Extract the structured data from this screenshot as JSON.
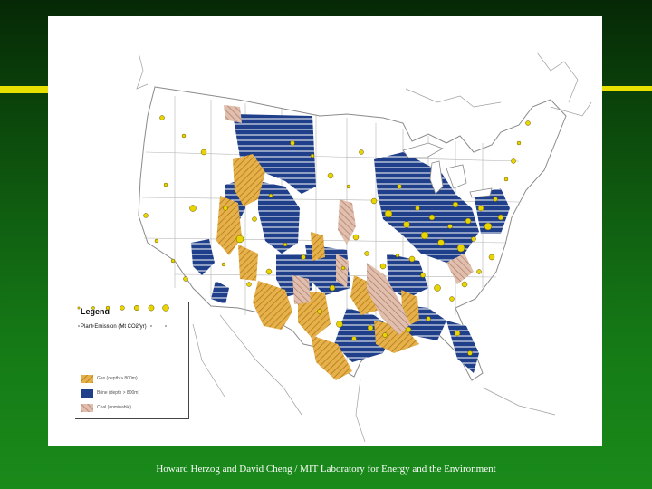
{
  "map": {
    "legend": {
      "title": "Legend",
      "subtitle": "Plant Emission (Mt CO2/yr)",
      "items": [
        {
          "label": "Gas (depth > 800m)",
          "color": "#e0a830",
          "icon": "gas-hatch-swatch"
        },
        {
          "label": "Brine (depth > 800m)",
          "color": "#1f3f8a",
          "icon": "brine-swatch"
        },
        {
          "label": "Coal (unminable)",
          "color": "#d4a68c",
          "icon": "coal-swatch"
        }
      ]
    },
    "colors": {
      "plant_points": "#e8d400",
      "gas": "#e0a830",
      "brine": "#1f3f8a",
      "coal": "#d4a68c",
      "boundaries": "#9a9a9a"
    }
  },
  "caption": "Howard Herzog and David Cheng / MIT Laboratory for Energy and the Environment"
}
